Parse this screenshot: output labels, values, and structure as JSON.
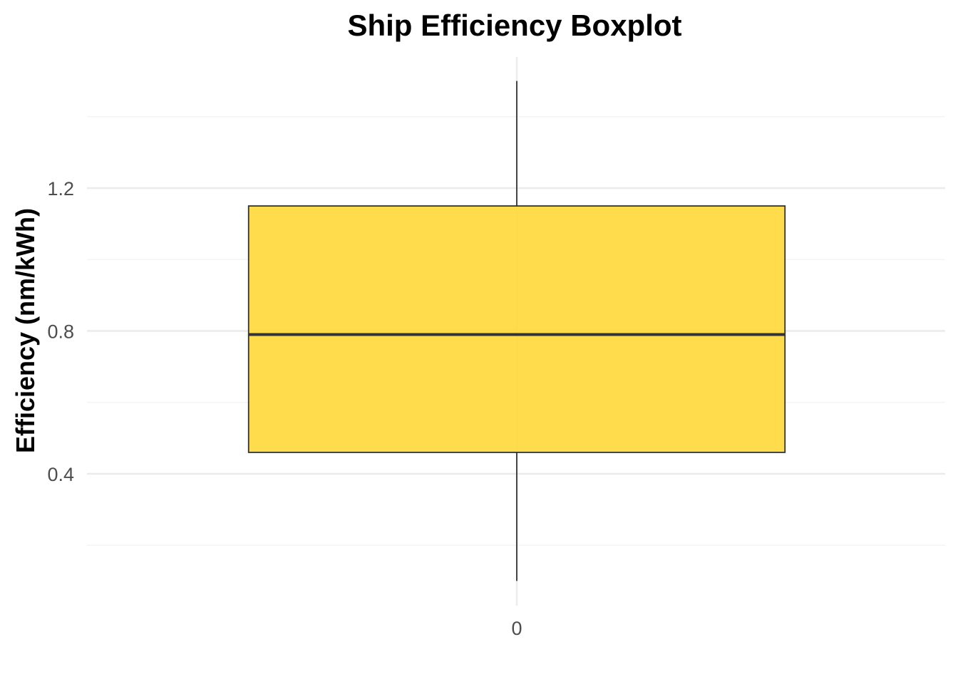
{
  "chart_data": {
    "type": "boxplot",
    "title": "Ship Efficiency Boxplot",
    "xlabel": "",
    "ylabel": "Efficiency (nm/kWh)",
    "categories": [
      "0"
    ],
    "ylim": [
      0.07,
      1.57
    ],
    "y_ticks": [
      0.4,
      0.8,
      1.2
    ],
    "y_tick_labels": [
      "0.4",
      "0.8",
      "1.2"
    ],
    "grid": true,
    "legend": "none",
    "boxes": [
      {
        "category": "0",
        "min": 0.1,
        "q1": 0.46,
        "median": 0.79,
        "q3": 1.15,
        "max": 1.5
      }
    ],
    "colors": {
      "box_fill": "#FFD733",
      "box_outline": "#333333",
      "median_line": "#333333",
      "whisker": "#333333",
      "grid_major": "#EBEBEB",
      "grid_minor": "#F2F2F2"
    }
  }
}
